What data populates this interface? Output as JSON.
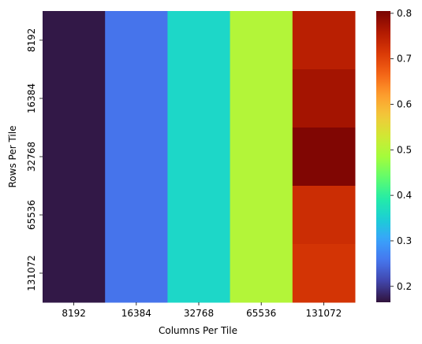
{
  "chart_data": {
    "type": "heatmap",
    "xlabel": "Columns Per Tile",
    "ylabel": "Rows Per Tile",
    "x_categories": [
      "8192",
      "16384",
      "32768",
      "65536",
      "131072"
    ],
    "y_categories": [
      "8192",
      "16384",
      "32768",
      "65536",
      "131072"
    ],
    "values": [
      [
        0.17,
        0.255,
        0.36,
        0.5,
        0.75
      ],
      [
        0.17,
        0.255,
        0.36,
        0.5,
        0.77
      ],
      [
        0.17,
        0.255,
        0.36,
        0.5,
        0.8
      ],
      [
        0.17,
        0.255,
        0.36,
        0.5,
        0.73
      ],
      [
        0.17,
        0.255,
        0.36,
        0.5,
        0.72
      ]
    ],
    "colormap": "turbo",
    "colorbar": {
      "vmin": 0.165,
      "vmax": 0.805,
      "ticks": [
        0.2,
        0.3,
        0.4,
        0.5,
        0.6,
        0.7,
        0.8
      ],
      "tick_labels": [
        "0.2",
        "0.3",
        "0.4",
        "0.5",
        "0.6",
        "0.7",
        "0.8"
      ]
    },
    "turbo_stops": [
      "#30123b",
      "#4145ab",
      "#4675ed",
      "#39a2fc",
      "#1bcfd4",
      "#24eca6",
      "#61fc6c",
      "#a4fc3b",
      "#d1e834",
      "#f3c63a",
      "#fe9b2d",
      "#f36315",
      "#d93806",
      "#b11901",
      "#7a0403"
    ]
  }
}
